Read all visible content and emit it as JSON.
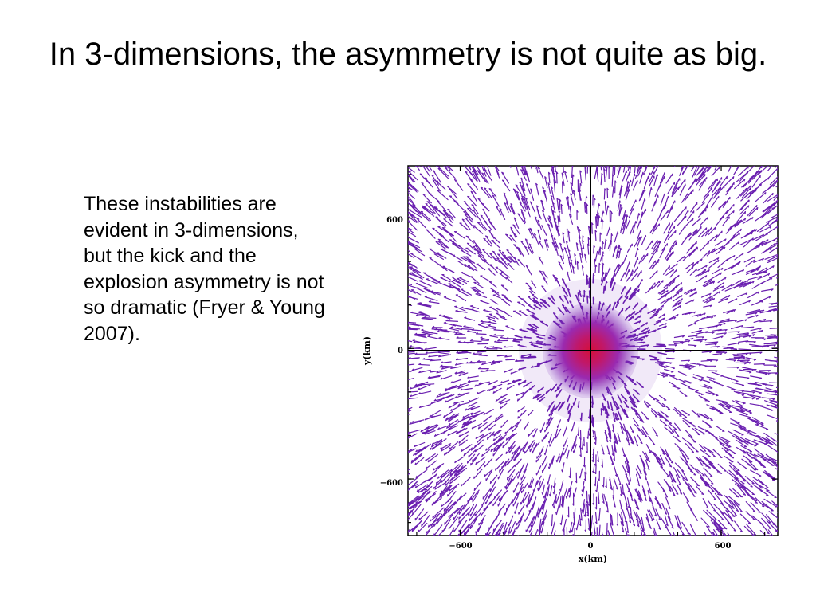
{
  "slide": {
    "title": "In 3-dimensions, the asymmetry is not quite as big.",
    "body": "These instabilities are evident in 3-dimensions, but the kick and the explosion asymmetry is not so dramatic (Fryer & Young 2007)."
  },
  "figure": {
    "xlabel": "x(km)",
    "ylabel": "y(km)",
    "xlim": [
      -840,
      860
    ],
    "ylim": [
      -860,
      840
    ],
    "xticks": [
      -600,
      0,
      600
    ],
    "yticks": [
      600,
      0,
      -600
    ],
    "xtick_labels": [
      "−600",
      "0",
      "600"
    ],
    "ytick_labels": [
      "600",
      "0",
      "−600"
    ],
    "colors": {
      "vectors": "#6a1fb0",
      "core": "#c8104a",
      "mid": "#a0209a",
      "halo": "#7a2ab8",
      "axes": "#000000"
    }
  }
}
